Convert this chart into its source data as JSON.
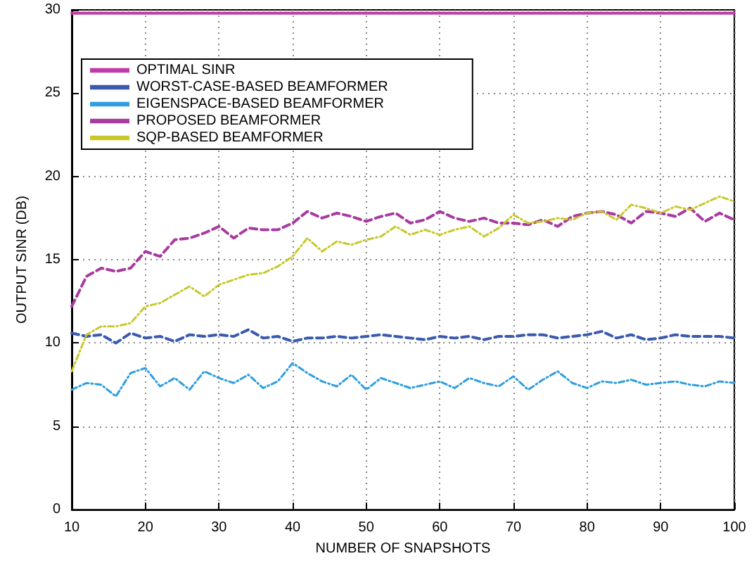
{
  "chart_data": {
    "type": "line",
    "xlabel": "NUMBER OF SNAPSHOTS",
    "ylabel": "OUTPUT SINR (DB)",
    "x": [
      10,
      12,
      14,
      16,
      18,
      20,
      22,
      24,
      26,
      28,
      30,
      32,
      34,
      36,
      38,
      40,
      42,
      44,
      46,
      48,
      50,
      52,
      54,
      56,
      58,
      60,
      62,
      64,
      66,
      68,
      70,
      72,
      74,
      76,
      78,
      80,
      82,
      84,
      86,
      88,
      90,
      92,
      94,
      96,
      98,
      100
    ],
    "series": [
      {
        "name": "OPTIMAL SINR",
        "color": "#c03aa8",
        "line_style": "solid",
        "values": [
          29.8,
          29.8,
          29.8,
          29.8,
          29.8,
          29.8,
          29.8,
          29.8,
          29.8,
          29.8,
          29.8,
          29.8,
          29.8,
          29.8,
          29.8,
          29.8,
          29.8,
          29.8,
          29.8,
          29.8,
          29.8,
          29.8,
          29.8,
          29.8,
          29.8,
          29.8,
          29.8,
          29.8,
          29.8,
          29.8,
          29.8,
          29.8,
          29.8,
          29.8,
          29.8,
          29.8,
          29.8,
          29.8,
          29.8,
          29.8,
          29.8,
          29.8,
          29.8,
          29.8,
          29.8,
          29.8
        ]
      },
      {
        "name": "WORST-CASE-BASED BEAMFORMER",
        "color": "#3a5ab0",
        "line_style": "dashed",
        "values": [
          10.6,
          10.4,
          10.5,
          10.0,
          10.6,
          10.3,
          10.4,
          10.1,
          10.5,
          10.4,
          10.5,
          10.4,
          10.8,
          10.3,
          10.4,
          10.1,
          10.3,
          10.3,
          10.4,
          10.3,
          10.4,
          10.5,
          10.4,
          10.3,
          10.2,
          10.4,
          10.3,
          10.4,
          10.2,
          10.4,
          10.4,
          10.5,
          10.5,
          10.3,
          10.4,
          10.5,
          10.7,
          10.3,
          10.5,
          10.2,
          10.3,
          10.5,
          10.4,
          10.4,
          10.4,
          10.3
        ]
      },
      {
        "name": "EIGENSPACE-BASED BEAMFORMER",
        "color": "#2e9ee0",
        "line_style": "dotted",
        "values": [
          7.2,
          7.6,
          7.5,
          6.8,
          8.2,
          8.5,
          7.4,
          7.9,
          7.2,
          8.3,
          7.9,
          7.6,
          8.1,
          7.3,
          7.7,
          8.8,
          8.2,
          7.7,
          7.4,
          8.1,
          7.2,
          7.9,
          7.6,
          7.3,
          7.5,
          7.7,
          7.3,
          7.9,
          7.6,
          7.4,
          8.0,
          7.2,
          7.8,
          8.3,
          7.6,
          7.3,
          7.7,
          7.6,
          7.8,
          7.5,
          7.6,
          7.7,
          7.5,
          7.4,
          7.7,
          7.6
        ]
      },
      {
        "name": "PROPOSED BEAMFORMER",
        "color": "#a83aa0",
        "line_style": "dashed",
        "values": [
          12.2,
          14.0,
          14.5,
          14.3,
          14.5,
          15.5,
          15.2,
          16.2,
          16.3,
          16.6,
          17.0,
          16.3,
          16.9,
          16.8,
          16.8,
          17.2,
          17.9,
          17.5,
          17.8,
          17.6,
          17.3,
          17.6,
          17.8,
          17.2,
          17.4,
          17.9,
          17.5,
          17.3,
          17.5,
          17.2,
          17.2,
          17.1,
          17.4,
          17.0,
          17.6,
          17.8,
          17.9,
          17.7,
          17.2,
          17.9,
          17.8,
          17.6,
          18.1,
          17.3,
          17.8,
          17.4
        ]
      },
      {
        "name": "SQP-BASED BEAMFORMER",
        "color": "#c8c82a",
        "line_style": "dotted",
        "values": [
          8.3,
          10.5,
          11.0,
          11.0,
          11.2,
          12.2,
          12.4,
          12.9,
          13.4,
          12.8,
          13.5,
          13.8,
          14.1,
          14.2,
          14.6,
          15.2,
          16.3,
          15.5,
          16.1,
          15.9,
          16.2,
          16.4,
          17.0,
          16.5,
          16.8,
          16.5,
          16.8,
          17.0,
          16.4,
          16.9,
          17.7,
          17.2,
          17.3,
          17.5,
          17.4,
          17.8,
          17.9,
          17.4,
          18.3,
          18.1,
          17.8,
          18.2,
          18.0,
          18.4,
          18.8,
          18.5
        ]
      }
    ],
    "xlim": [
      10,
      100
    ],
    "xticks": [
      10,
      20,
      30,
      40,
      50,
      60,
      70,
      80,
      90,
      100
    ],
    "ylim": [
      0,
      30
    ],
    "yticks": [
      0,
      5,
      10,
      15,
      20,
      25,
      30
    ],
    "grid": true,
    "legend": "top left",
    "marker": "none"
  }
}
